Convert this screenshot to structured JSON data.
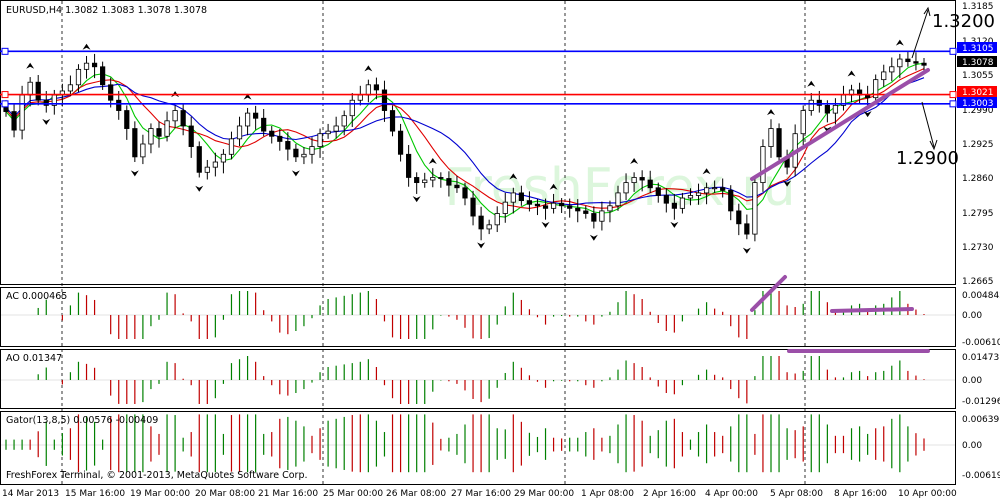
{
  "colors": {
    "grid": "#c8c8c8",
    "frame": "#000000",
    "bull": "#ffffff",
    "bear": "#000000",
    "level_blue": "#0000ff",
    "level_red": "#ff0000",
    "ma_green": "#00c800",
    "ma_red": "#e00000",
    "ma_blue": "#0000d0",
    "hist_green": "#008000",
    "hist_red": "#c00000",
    "annotation": "#9b4fa8"
  },
  "chart_data": [
    {
      "type": "candlestick",
      "title": "EURUSD,H4  1.3082 1.3083 1.3078 1.3078",
      "watermark": "FreshForex.ru",
      "y_ticks": [
        "1.3185",
        "1.3120",
        "1.3055",
        "1.2990",
        "1.2925",
        "1.2860",
        "1.2795",
        "1.2730",
        "1.2665"
      ],
      "ylim": [
        1.2655,
        1.3195
      ],
      "price_tags": [
        {
          "value": 1.3105,
          "label": "1.3105",
          "color": "blue"
        },
        {
          "value": 1.3078,
          "label": "1.3078",
          "color": "black"
        },
        {
          "value": 1.3021,
          "label": "1.3021",
          "color": "red"
        },
        {
          "value": 1.3003,
          "label": "1.3003",
          "color": "blue"
        }
      ],
      "horizontal_levels": [
        {
          "value": 1.3105,
          "color": "blue"
        },
        {
          "value": 1.3021,
          "color": "red"
        },
        {
          "value": 1.3003,
          "color": "blue"
        }
      ],
      "annotations": [
        "1.3200",
        "1.2900"
      ],
      "candles_close": [
        1.2988,
        1.2952,
        1.302,
        1.3045,
        1.301,
        1.3,
        1.302,
        1.3028,
        1.304,
        1.307,
        1.3082,
        1.3075,
        1.304,
        1.301,
        1.299,
        1.2955,
        1.29,
        1.2925,
        1.2955,
        1.294,
        1.297,
        1.299,
        1.296,
        1.292,
        1.287,
        1.288,
        1.289,
        1.2905,
        1.2935,
        1.296,
        1.2985,
        1.2975,
        1.295,
        1.294,
        1.293,
        1.2915,
        1.29,
        1.2905,
        1.292,
        1.2945,
        1.295,
        1.296,
        1.298,
        1.301,
        1.302,
        1.304,
        1.303,
        1.299,
        1.295,
        1.2905,
        1.286,
        1.285,
        1.2855,
        1.286,
        1.2858,
        1.2845,
        1.284,
        1.282,
        1.2785,
        1.276,
        1.2768,
        1.279,
        1.2812,
        1.283,
        1.2815,
        1.2808,
        1.2805,
        1.28,
        1.281,
        1.2805,
        1.28,
        1.2795,
        1.279,
        1.2775,
        1.2795,
        1.2805,
        1.283,
        1.285,
        1.286,
        1.2855,
        1.284,
        1.2825,
        1.281,
        1.28,
        1.282,
        1.2825,
        1.283,
        1.284,
        1.284,
        1.2835,
        1.2795,
        1.277,
        1.275,
        1.285,
        1.292,
        1.2955,
        1.29,
        1.288,
        1.2945,
        1.299,
        1.301,
        1.3,
        1.2985,
        1.3,
        1.302,
        1.303,
        1.302,
        1.3015,
        1.305,
        1.3065,
        1.3075,
        1.309,
        1.3085,
        1.3082,
        1.3078
      ],
      "moving_averages": [
        "green",
        "red",
        "blue"
      ]
    },
    {
      "type": "histogram",
      "title": "AC 0.000465",
      "y_ticks": [
        "0.004842",
        "0.00",
        "-0.00610"
      ]
    },
    {
      "type": "histogram",
      "title": "AO 0.01347",
      "y_ticks": [
        "0.01473",
        "0.00",
        "-0.01296"
      ]
    },
    {
      "type": "histogram",
      "title": "Gator(13,8,5) 0.00576 -0.00409",
      "y_ticks": [
        "0.00639",
        "0.00",
        "-0.00619"
      ]
    }
  ],
  "x_labels": [
    "14 Mar 2013",
    "15 Mar 16:00",
    "19 Mar 00:00",
    "20 Mar 08:00",
    "21 Mar 16:00",
    "25 Mar 00:00",
    "26 Mar 08:00",
    "27 Mar 16:00",
    "29 Mar 00:00",
    "1 Apr 08:00",
    "2 Apr 16:00",
    "4 Apr 00:00",
    "5 Apr 08:00",
    "8 Apr 16:00",
    "10 Apr 00:00"
  ],
  "footer": "FreshForex Terminal, © 2001-2013, MetaQuotes Software Corp."
}
